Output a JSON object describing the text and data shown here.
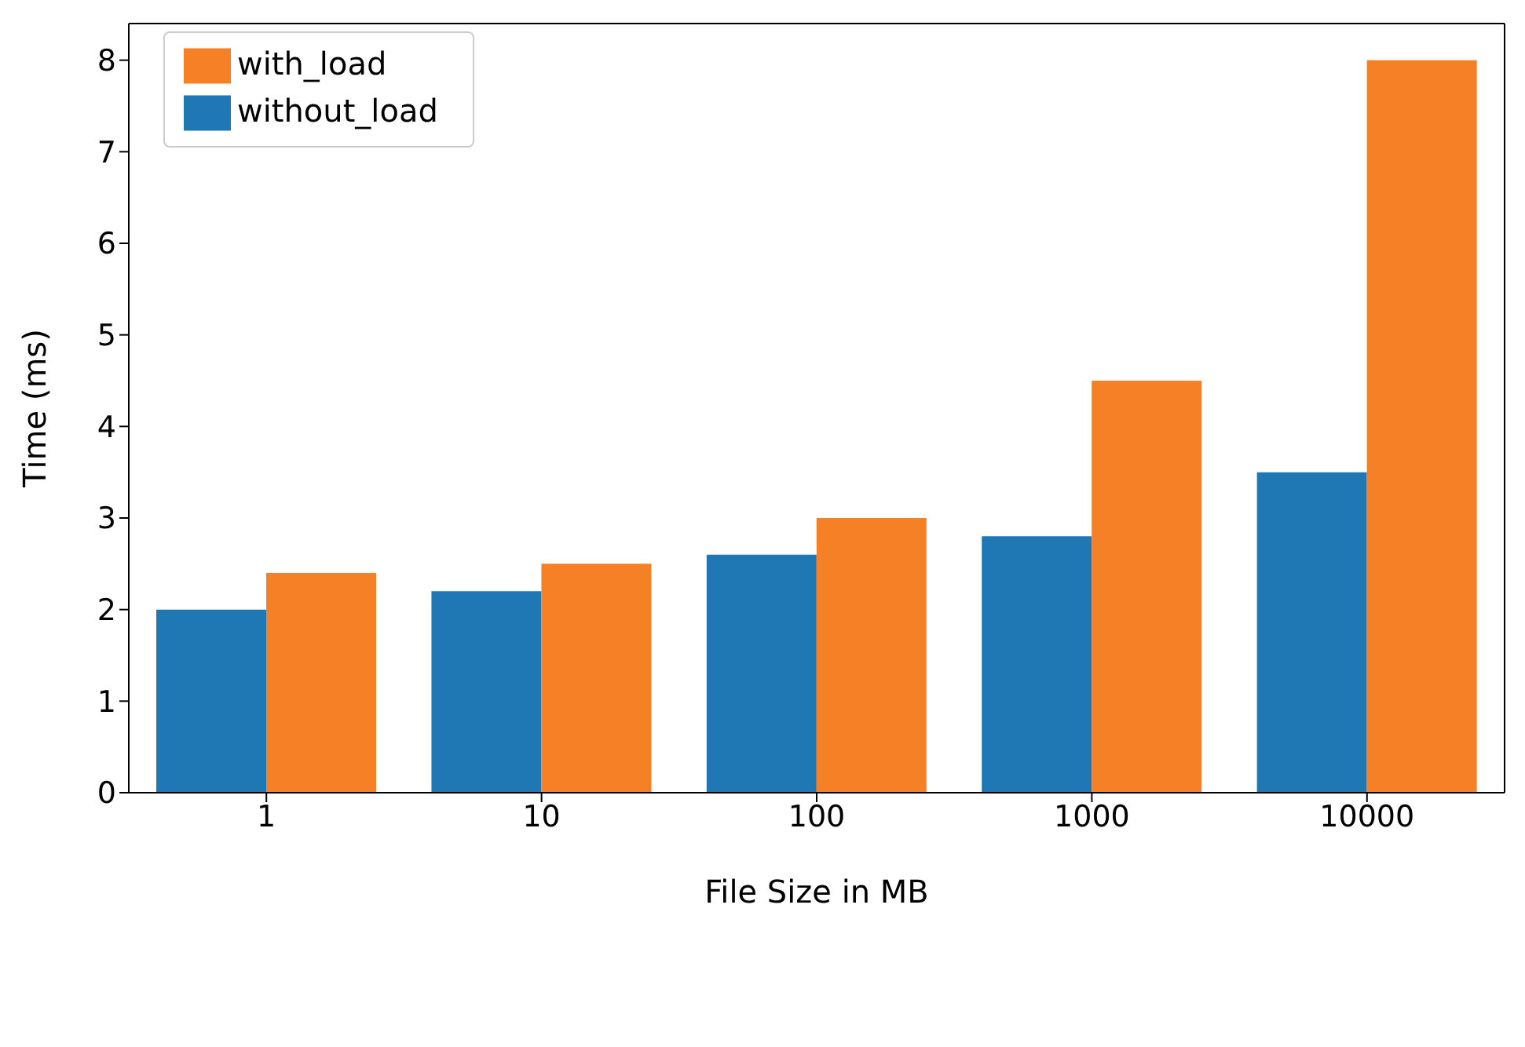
{
  "chart_data": {
    "type": "bar",
    "xlabel": "File Size in MB",
    "ylabel": "Time (ms)",
    "categories": [
      "1",
      "10",
      "100",
      "1000",
      "10000"
    ],
    "series": [
      {
        "name": "without_load",
        "color": "#1f77b4",
        "values": [
          2.0,
          2.2,
          2.6,
          2.8,
          3.5
        ]
      },
      {
        "name": "with_load",
        "color": "#f58025",
        "values": [
          2.4,
          2.5,
          3.0,
          4.5,
          8.0
        ]
      }
    ],
    "ylim": [
      0,
      8.4
    ],
    "yticks": [
      0,
      1,
      2,
      3,
      4,
      5,
      6,
      7,
      8
    ],
    "grid": false,
    "legend": "top left"
  }
}
